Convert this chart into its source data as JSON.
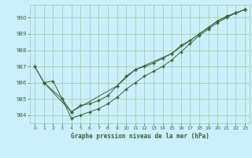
{
  "title": "Graphe pression niveau de la mer (hPa)",
  "background_color": "#cceeff",
  "grid_color": "#99cc99",
  "line_color": "#336633",
  "hours": [
    0,
    1,
    2,
    3,
    4,
    5,
    6,
    7,
    8,
    9,
    10,
    11,
    12,
    13,
    14,
    15,
    16,
    17,
    18,
    19,
    20,
    21,
    22,
    23
  ],
  "line1": [
    987.0,
    986.0,
    986.1,
    985.0,
    984.2,
    984.6,
    984.7,
    984.9,
    985.2,
    985.8,
    986.4,
    986.8,
    987.0,
    987.2,
    987.5,
    987.8,
    988.3,
    988.6,
    989.0,
    989.4,
    989.8,
    990.1,
    990.3,
    990.5
  ],
  "line2_x": [
    0,
    1,
    4,
    9,
    11,
    15,
    19,
    20,
    22,
    23
  ],
  "line2_y": [
    987.0,
    986.0,
    984.2,
    985.8,
    986.8,
    987.8,
    989.4,
    989.8,
    990.3,
    990.5
  ],
  "line3_x": [
    1,
    3,
    4,
    5,
    6,
    7,
    8,
    9,
    10,
    11,
    12,
    13,
    14,
    15,
    16,
    17,
    18,
    19,
    20,
    21,
    22,
    23
  ],
  "line3_y": [
    986.0,
    985.0,
    983.8,
    984.0,
    984.2,
    984.4,
    984.7,
    985.1,
    985.6,
    986.0,
    986.4,
    986.7,
    987.0,
    987.4,
    987.9,
    988.4,
    988.9,
    989.3,
    989.7,
    990.0,
    990.3,
    990.5
  ],
  "ylim": [
    983.5,
    990.8
  ],
  "yticks": [
    984,
    985,
    986,
    987,
    988,
    989,
    990
  ],
  "xlim": [
    -0.5,
    23.5
  ]
}
